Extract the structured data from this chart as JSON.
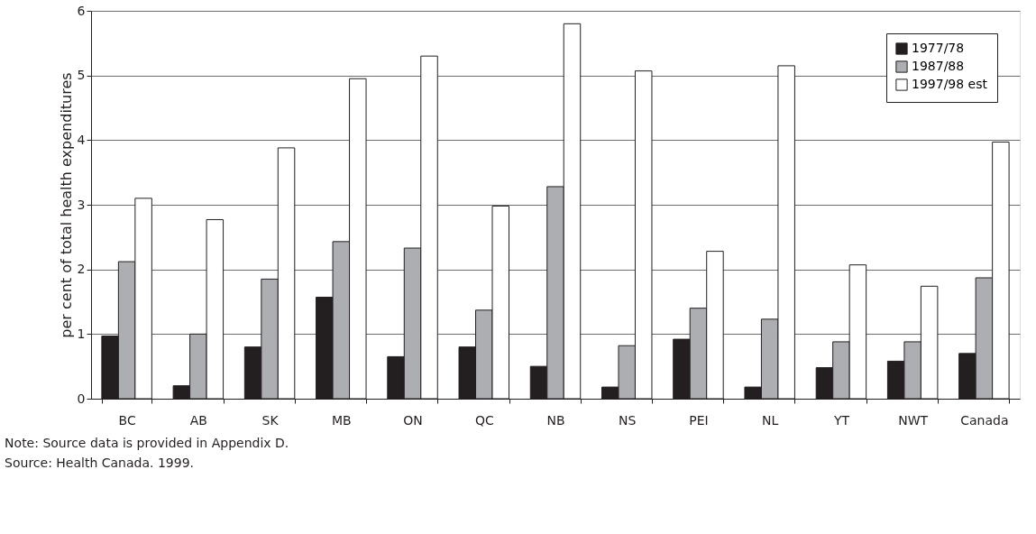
{
  "chart_data": {
    "type": "bar",
    "ylabel": "per cent of total health expenditures",
    "categories": [
      "BC",
      "AB",
      "SK",
      "MB",
      "ON",
      "QC",
      "NB",
      "NS",
      "PEI",
      "NL",
      "YT",
      "NWT",
      "Canada"
    ],
    "series": [
      {
        "name": "1977/78",
        "color": "#231f20",
        "values": [
          0.97,
          0.2,
          0.8,
          1.57,
          0.65,
          0.8,
          0.5,
          0.18,
          0.92,
          0.18,
          0.48,
          0.58,
          0.7
        ]
      },
      {
        "name": "1987/88",
        "color": "#adaeb1",
        "values": [
          2.12,
          1.0,
          1.85,
          2.43,
          2.33,
          1.37,
          3.28,
          0.82,
          1.4,
          1.23,
          0.88,
          0.88,
          1.87
        ]
      },
      {
        "name": "1997/98 est",
        "color": "#ffffff",
        "values": [
          3.1,
          2.77,
          3.88,
          4.95,
          5.3,
          2.98,
          5.8,
          5.07,
          2.28,
          5.15,
          2.07,
          1.74,
          3.97
        ]
      }
    ],
    "ylim": [
      0,
      6
    ],
    "yticks": [
      0,
      1,
      2,
      3,
      4,
      5,
      6
    ],
    "grid": "y",
    "legend": "top right",
    "annotations": [
      "Note:     Source data is provided in Appendix D.",
      "Source:  Health Canada. 1999."
    ]
  }
}
